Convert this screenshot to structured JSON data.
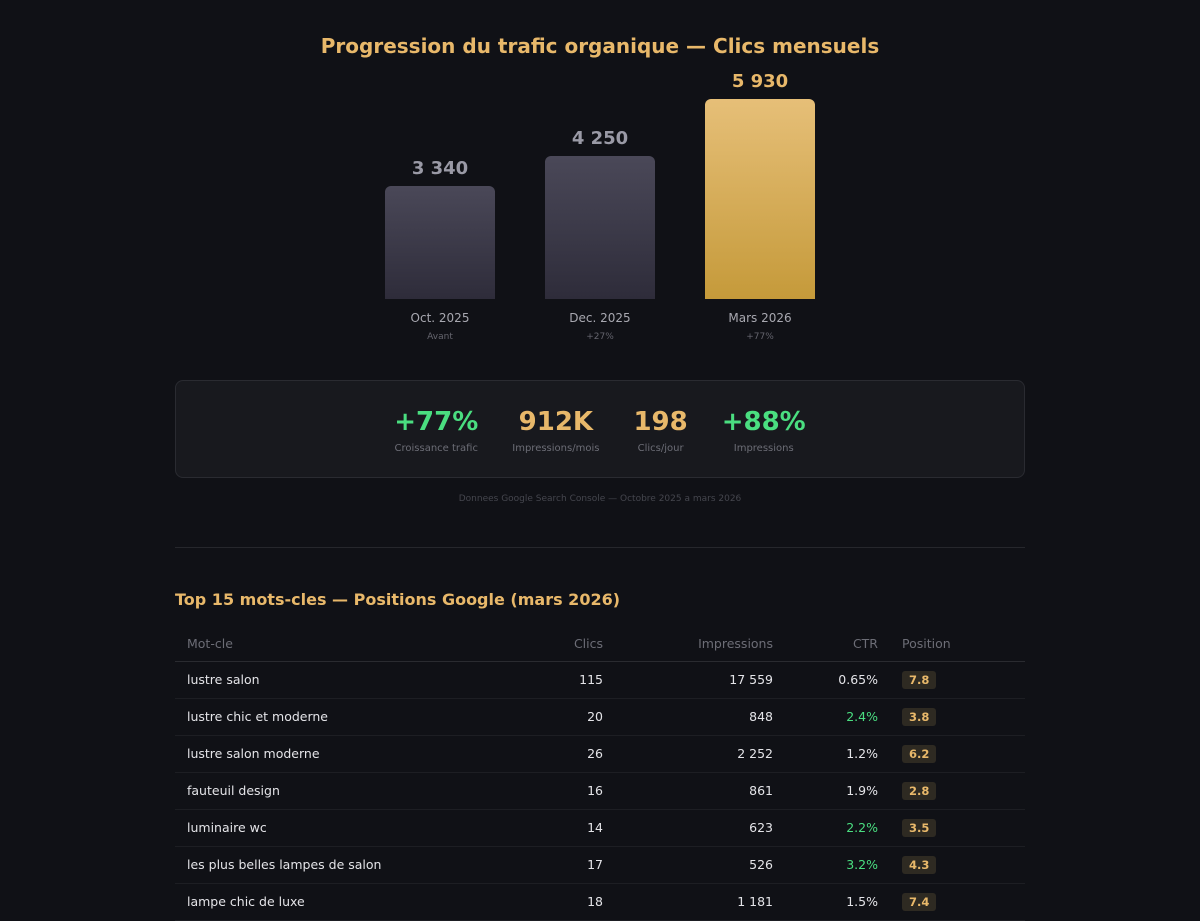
{
  "chart_data": {
    "type": "bar",
    "title": "Progression du trafic organique — Clics mensuels",
    "categories": [
      "Oct. 2025",
      "Dec. 2025",
      "Mars 2026"
    ],
    "value_labels": [
      "3 340",
      "4 250",
      "5 930"
    ],
    "values": [
      3340,
      4250,
      5930
    ],
    "sublabels": [
      "Avant",
      "+27%",
      "+77%"
    ],
    "colors": [
      "#3a3848",
      "#3a3848",
      "#d9b05e"
    ],
    "highlight_index": 2
  },
  "stats": [
    {
      "value": "+77%",
      "label": "Croissance trafic",
      "color": "#4ade80"
    },
    {
      "value": "912K",
      "label": "Impressions/mois",
      "color": "#e8b86a"
    },
    {
      "value": "198",
      "label": "Clics/jour",
      "color": "#e8b86a"
    },
    {
      "value": "+88%",
      "label": "Impressions",
      "color": "#4ade80"
    }
  ],
  "footnote": "Donnees Google Search Console — Octobre 2025 a mars 2026",
  "table": {
    "title": "Top 15 mots-cles — Positions Google (mars 2026)",
    "headers": [
      "Mot-cle",
      "Clics",
      "Impressions",
      "CTR",
      "Position"
    ],
    "rows": [
      [
        "lustre salon",
        "115",
        "17 559",
        "0.65%",
        "7.8"
      ],
      [
        "lustre chic et moderne",
        "20",
        "848",
        "2.4%",
        "3.8"
      ],
      [
        "lustre salon moderne",
        "26",
        "2 252",
        "1.2%",
        "6.2"
      ],
      [
        "fauteuil design",
        "16",
        "861",
        "1.9%",
        "2.8"
      ],
      [
        "luminaire wc",
        "14",
        "623",
        "2.2%",
        "3.5"
      ],
      [
        "les plus belles lampes de salon",
        "17",
        "526",
        "3.2%",
        "4.3"
      ],
      [
        "lampe chic de luxe",
        "18",
        "1 181",
        "1.5%",
        "7.4"
      ]
    ],
    "ctr_highlight_color": "#4ade80"
  }
}
